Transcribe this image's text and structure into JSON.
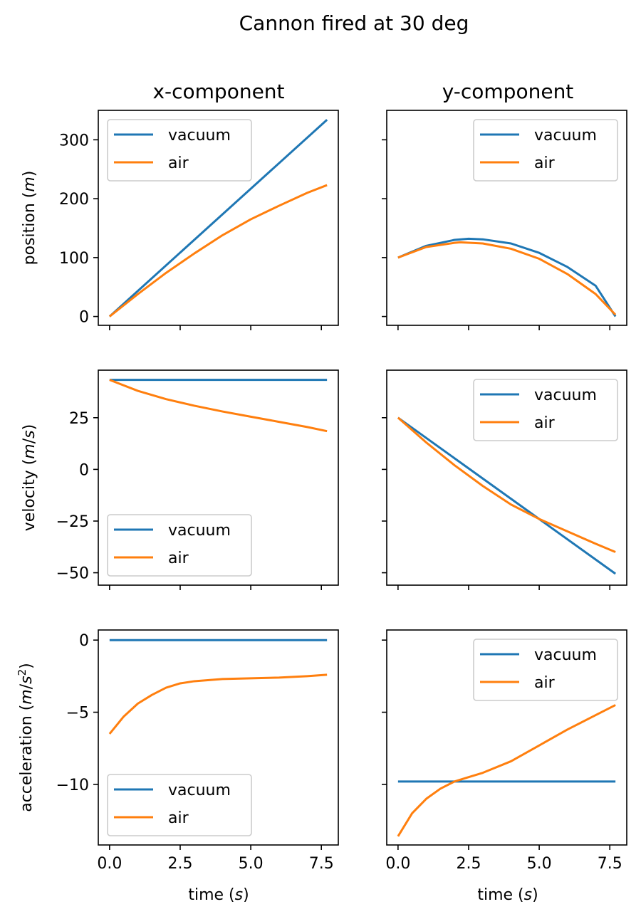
{
  "suptitle": "Cannon fired at 30 deg",
  "colors": {
    "vacuum": "#1f77b4",
    "air": "#ff7f0e",
    "axes": "#000000",
    "legend_border": "#cccccc"
  },
  "chart_data": {
    "type": "line",
    "title": "Cannon fired at 30 deg",
    "grid": false,
    "column_titles": [
      "x-component",
      "y-component"
    ],
    "row_labels": [
      "position (m)",
      "velocity (m/s)",
      "acceleration (m/s²)"
    ],
    "xlabel": "time (s)",
    "xlim": [
      -0.4,
      8.1
    ],
    "xticks": [
      0.0,
      2.5,
      5.0,
      7.5
    ],
    "xtick_labels": [
      "0.0",
      "2.5",
      "5.0",
      "7.5"
    ],
    "rows": [
      {
        "ylim": [
          -15,
          350
        ],
        "yticks": [
          0,
          100,
          200,
          300
        ],
        "ytick_labels": [
          "0",
          "100",
          "200",
          "300"
        ],
        "legend_left": "upper left",
        "legend_right": "upper right"
      },
      {
        "ylim": [
          -56,
          48
        ],
        "yticks": [
          -50,
          -25,
          0,
          25
        ],
        "ytick_labels": [
          "−50",
          "−25",
          "0",
          "25"
        ],
        "legend_left": "lower left",
        "legend_right": "upper right"
      },
      {
        "ylim": [
          -14.2,
          0.7
        ],
        "yticks": [
          -10,
          -5,
          0
        ],
        "ytick_labels": [
          "−10",
          "−5",
          "0"
        ],
        "legend_left": "lower left",
        "legend_right": "upper right"
      }
    ],
    "panels": [
      {
        "row": 0,
        "col": 0,
        "series": [
          {
            "name": "vacuum",
            "x": [
              0,
              7.7
            ],
            "y": [
              0,
              334
            ]
          },
          {
            "name": "air",
            "x": [
              0,
              1,
              2,
              3,
              4,
              5,
              6,
              7,
              7.7
            ],
            "y": [
              0,
              38,
              74,
              107,
              138,
              165,
              188,
              210,
              223
            ]
          }
        ]
      },
      {
        "row": 0,
        "col": 1,
        "series": [
          {
            "name": "vacuum",
            "x": [
              0,
              1,
              2,
              2.5,
              3,
              4,
              5,
              6,
              7,
              7.7
            ],
            "y": [
              100,
              120,
              130,
              132,
              131,
              124,
              108,
              84,
              52,
              0
            ]
          },
          {
            "name": "air",
            "x": [
              0,
              1,
              2,
              2.2,
              3,
              4,
              5,
              6,
              7,
              7.7
            ],
            "y": [
              100,
              118,
              125,
              126,
              124,
              115,
              98,
              72,
              38,
              3
            ]
          }
        ]
      },
      {
        "row": 1,
        "col": 0,
        "series": [
          {
            "name": "vacuum",
            "x": [
              0,
              7.7
            ],
            "y": [
              43.3,
              43.3
            ]
          },
          {
            "name": "air",
            "x": [
              0,
              1,
              2,
              3,
              4,
              5,
              6,
              7,
              7.7
            ],
            "y": [
              43.3,
              38,
              34,
              30.8,
              28,
              25.5,
              23,
              20.5,
              18.5
            ]
          }
        ]
      },
      {
        "row": 1,
        "col": 1,
        "series": [
          {
            "name": "vacuum",
            "x": [
              0,
              7.7
            ],
            "y": [
              25,
              -50.5
            ]
          },
          {
            "name": "air",
            "x": [
              0,
              1,
              2,
              3,
              4,
              5,
              6,
              7,
              7.7
            ],
            "y": [
              25,
              13,
              2,
              -8,
              -17,
              -24,
              -30,
              -36,
              -40
            ]
          }
        ]
      },
      {
        "row": 2,
        "col": 0,
        "series": [
          {
            "name": "vacuum",
            "x": [
              0,
              7.7
            ],
            "y": [
              0,
              0
            ]
          },
          {
            "name": "air",
            "x": [
              0,
              0.5,
              1,
              1.5,
              2,
              2.5,
              3,
              4,
              5,
              6,
              7,
              7.7
            ],
            "y": [
              -6.5,
              -5.3,
              -4.4,
              -3.8,
              -3.3,
              -3.0,
              -2.85,
              -2.7,
              -2.65,
              -2.6,
              -2.5,
              -2.4
            ]
          }
        ]
      },
      {
        "row": 2,
        "col": 1,
        "series": [
          {
            "name": "vacuum",
            "x": [
              0,
              7.7
            ],
            "y": [
              -9.8,
              -9.8
            ]
          },
          {
            "name": "air",
            "x": [
              0,
              0.5,
              1,
              1.5,
              2,
              2.5,
              3,
              4,
              5,
              6,
              7,
              7.7
            ],
            "y": [
              -13.6,
              -12.0,
              -11.0,
              -10.3,
              -9.8,
              -9.5,
              -9.2,
              -8.4,
              -7.3,
              -6.2,
              -5.2,
              -4.5
            ]
          }
        ]
      }
    ]
  }
}
